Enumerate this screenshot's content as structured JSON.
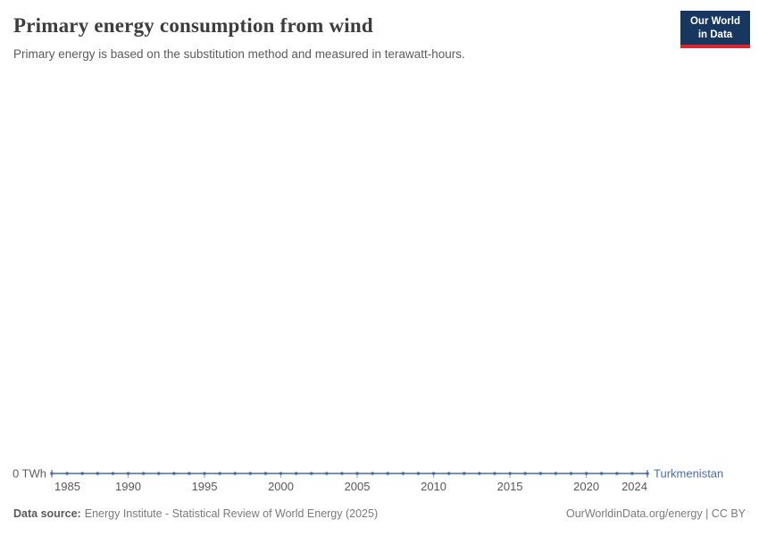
{
  "header": {
    "title": "Primary energy consumption from wind",
    "subtitle": "Primary energy is based on the substitution method and measured in terawatt-hours."
  },
  "logo": {
    "line1": "Our World",
    "line2": "in Data"
  },
  "chart_data": {
    "type": "line",
    "title": "Primary energy consumption from wind",
    "unit": "terawatt-hours",
    "y_axis_zero_label": "0 TWh",
    "xlim": [
      1985,
      2024
    ],
    "ylim": [
      0,
      0
    ],
    "grid": false,
    "legend_position": "end-of-line",
    "x_ticks": [
      1985,
      1990,
      1995,
      2000,
      2005,
      2010,
      2015,
      2020,
      2024
    ],
    "series": [
      {
        "name": "Turkmenistan",
        "color": "#4c6ca8",
        "x": [
          1985,
          1986,
          1987,
          1988,
          1989,
          1990,
          1991,
          1992,
          1993,
          1994,
          1995,
          1996,
          1997,
          1998,
          1999,
          2000,
          2001,
          2002,
          2003,
          2004,
          2005,
          2006,
          2007,
          2008,
          2009,
          2010,
          2011,
          2012,
          2013,
          2014,
          2015,
          2016,
          2017,
          2018,
          2019,
          2020,
          2021,
          2022,
          2023,
          2024
        ],
        "values": [
          0,
          0,
          0,
          0,
          0,
          0,
          0,
          0,
          0,
          0,
          0,
          0,
          0,
          0,
          0,
          0,
          0,
          0,
          0,
          0,
          0,
          0,
          0,
          0,
          0,
          0,
          0,
          0,
          0,
          0,
          0,
          0,
          0,
          0,
          0,
          0,
          0,
          0,
          0,
          0
        ]
      }
    ]
  },
  "footer": {
    "data_source_label": "Data source:",
    "data_source_text": "Energy Institute - Statistical Review of World Energy (2025)",
    "attribution": "OurWorldinData.org/energy | CC BY"
  },
  "colors": {
    "line": "#4c6ca8",
    "logo_background": "#18375f",
    "logo_accent": "#d7282f"
  }
}
